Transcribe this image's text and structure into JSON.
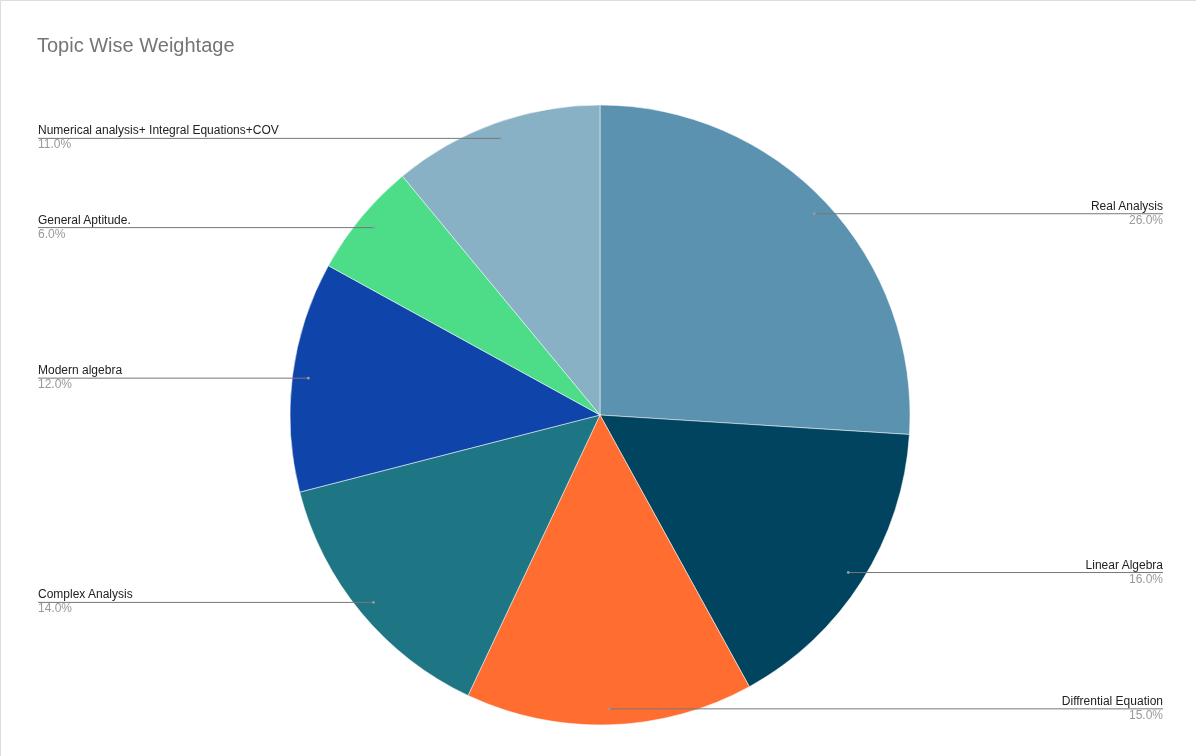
{
  "chart_data": {
    "type": "pie",
    "title": "Topic Wise Weightage",
    "categories": [
      "Real Analysis",
      "Linear Algebra",
      "Diffrential Equation",
      "Complex Analysis",
      "Modern  algebra",
      "General Aptitude.",
      "Numerical analysis+ Integral Equations+COV"
    ],
    "values": [
      26,
      16,
      15,
      14,
      12,
      6,
      11
    ],
    "colors": [
      "#5a92b0",
      "#01445f",
      "#ff6d31",
      "#1e7584",
      "#0f44aa",
      "#4ddc88",
      "#88b1c6"
    ],
    "value_labels": [
      "26.0%",
      "16.0%",
      "15.0%",
      "14.0%",
      "12.0%",
      "6.0%",
      "11.0%"
    ]
  }
}
